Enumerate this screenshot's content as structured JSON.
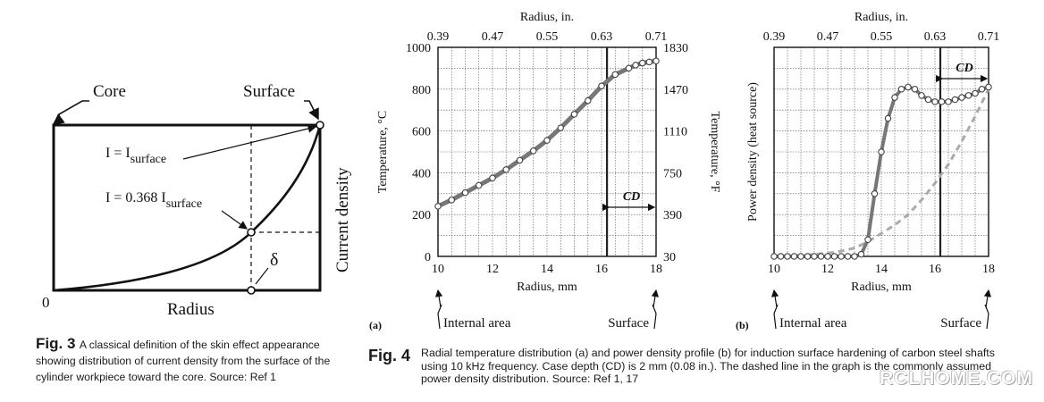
{
  "fig3": {
    "label_core": "Core",
    "label_surface": "Surface",
    "label_i_surface": "I = I",
    "label_i_surface_sub": "surface",
    "label_i_0368": "I = 0.368 I",
    "label_i_0368_sub": "surface",
    "label_delta": "δ",
    "label_current_density": "Current density",
    "label_radius": "Radius",
    "label_zero": "0",
    "caption_num": "Fig. 3",
    "caption_text": "A classical definition of the skin effect appearance showing distribution of current density from the surface of the cylinder workpiece toward the core. Source: Ref 1"
  },
  "fig4": {
    "caption_num": "Fig. 4",
    "caption_text": "Radial temperature distribution (a) and power density profile (b) for induction surface hardening of carbon steel shafts using 10 kHz frequency. Case depth (CD) is 2 mm (0.08 in.). The dashed line in the graph is the commonly assumed power density distribution. Source: Ref 1, 17"
  },
  "watermark": "RCLHOME.COM",
  "chart_data": [
    {
      "type": "line",
      "panel": "(a)",
      "top_axis_label": "Radius, in.",
      "top_ticks": [
        "0.39",
        "0.47",
        "0.55",
        "0.63",
        "0.71"
      ],
      "xlabel": "Radius, mm",
      "x_ticks": [
        "10",
        "12",
        "14",
        "16",
        "18"
      ],
      "xlim": [
        10,
        18
      ],
      "ylabel": "Temperature, °C",
      "y_ticks": [
        "0",
        "200",
        "400",
        "600",
        "800",
        "1000"
      ],
      "ylim": [
        0,
        1000
      ],
      "y2label": "Temperature, °F",
      "y2_ticks": [
        "30",
        "390",
        "750",
        "1110",
        "1470",
        "1830"
      ],
      "cd_label": "CD",
      "cd_x": 16.2,
      "below_left": "Internal area",
      "below_right": "Surface",
      "x": [
        10,
        10.5,
        11,
        11.5,
        12,
        12.5,
        13,
        13.5,
        14,
        14.5,
        15,
        15.5,
        16,
        16.5,
        17,
        17.25,
        17.5,
        17.75,
        18
      ],
      "y": [
        240,
        270,
        305,
        340,
        375,
        415,
        460,
        505,
        555,
        615,
        680,
        745,
        815,
        870,
        900,
        915,
        925,
        930,
        935
      ]
    },
    {
      "type": "line",
      "panel": "(b)",
      "top_axis_label": "Radius, in.",
      "top_ticks": [
        "0.39",
        "0.47",
        "0.55",
        "0.63",
        "0.71"
      ],
      "xlabel": "Radius, mm",
      "x_ticks": [
        "10",
        "12",
        "14",
        "16",
        "18"
      ],
      "xlim": [
        10,
        18
      ],
      "ylabel": "Power density (heat source)",
      "ylim": [
        0,
        1
      ],
      "cd_label": "CD",
      "cd_x": 16.2,
      "below_left": "Internal area",
      "below_right": "Surface",
      "x": [
        10,
        10.25,
        10.5,
        10.75,
        11,
        11.25,
        11.5,
        11.75,
        12,
        12.25,
        12.5,
        12.75,
        13,
        13.25,
        13.5,
        13.75,
        14,
        14.25,
        14.5,
        14.75,
        15,
        15.25,
        15.5,
        15.75,
        16,
        16.25,
        16.5,
        16.75,
        17,
        17.25,
        17.5,
        17.75,
        18
      ],
      "y": [
        0.0,
        0.0,
        0.0,
        0.0,
        0.0,
        0.0,
        0.0,
        0.0,
        0.0,
        0.0,
        0.0,
        0.0,
        0.0,
        0.01,
        0.08,
        0.3,
        0.5,
        0.66,
        0.76,
        0.8,
        0.81,
        0.8,
        0.77,
        0.75,
        0.74,
        0.74,
        0.74,
        0.75,
        0.76,
        0.77,
        0.78,
        0.8,
        0.81
      ],
      "dashed_x": [
        10,
        11,
        12,
        12.5,
        13,
        13.5,
        14,
        14.5,
        15,
        15.5,
        16,
        16.5,
        17,
        17.5,
        18
      ],
      "dashed_y": [
        0.0,
        0.005,
        0.015,
        0.025,
        0.04,
        0.07,
        0.11,
        0.15,
        0.2,
        0.27,
        0.35,
        0.44,
        0.55,
        0.67,
        0.8
      ]
    }
  ]
}
